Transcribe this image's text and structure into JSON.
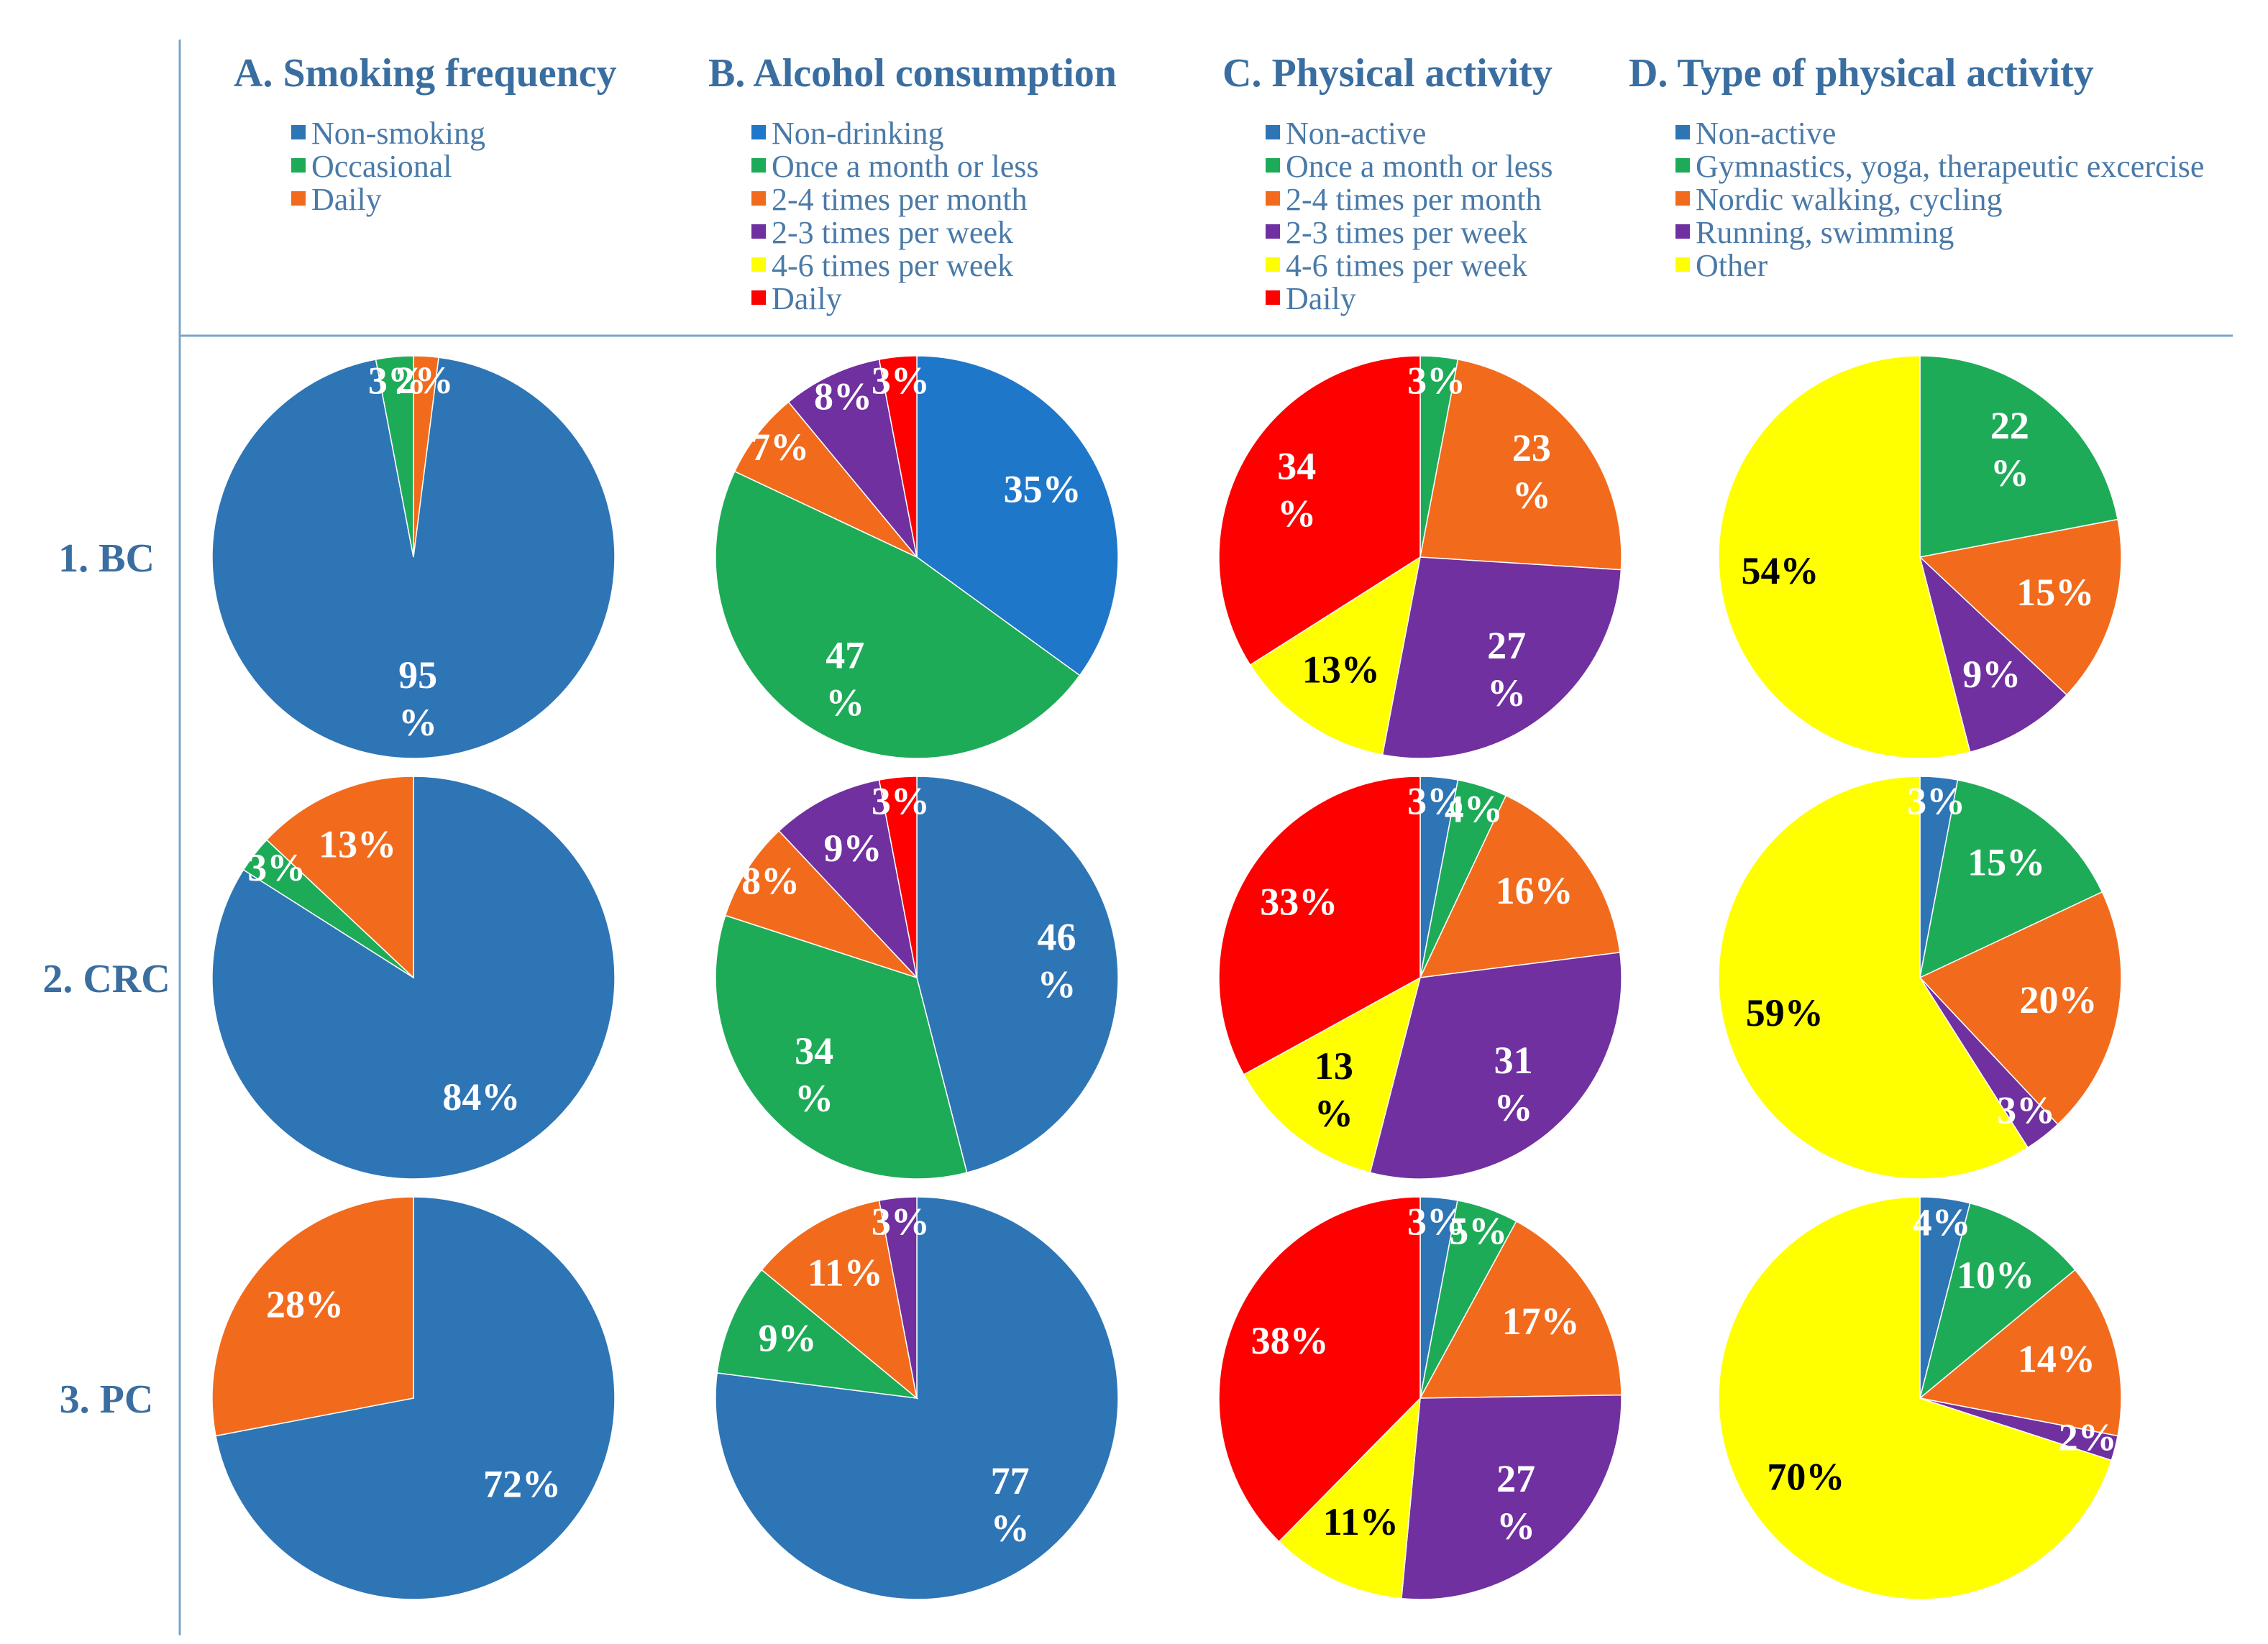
{
  "colors": {
    "blue": "#2e75b6",
    "blue_alc": "#1f77c9",
    "green": "#1eab58",
    "orange": "#f26b1d",
    "purple": "#7030a0",
    "yellow": "#ffff00",
    "red": "#ff0000",
    "title": "#3a6ea0",
    "legend_text": "#4a7aa8",
    "rule": "#7aa6c8",
    "label_white": "#ffffff",
    "label_black": "#000000"
  },
  "row_labels": [
    "1. BC",
    "2. CRC",
    "3. PC"
  ],
  "chart_data": [
    {
      "type": "pie",
      "title": "A. Smoking frequency",
      "legend": [
        {
          "label": "Non-smoking",
          "color": "blue"
        },
        {
          "label": "Occasional",
          "color": "green"
        },
        {
          "label": "Daily",
          "color": "orange"
        }
      ],
      "pies": [
        {
          "row": "1. BC",
          "start_deg": 0,
          "slices": [
            {
              "category": "Daily",
              "value": 2,
              "label": "2%",
              "color": "orange",
              "text": "label_white"
            },
            {
              "category": "Non-smoking",
              "value": 95,
              "label": "95 %",
              "color": "blue",
              "text": "label_white"
            },
            {
              "category": "Occasional",
              "value": 3,
              "label": "3%",
              "color": "green",
              "text": "label_white"
            }
          ]
        },
        {
          "row": "2. CRC",
          "start_deg": 0,
          "slices": [
            {
              "category": "Non-smoking",
              "value": 84,
              "label": "84%",
              "color": "blue",
              "text": "label_white"
            },
            {
              "category": "Occasional",
              "value": 3,
              "label": "3%",
              "color": "green",
              "text": "label_white"
            },
            {
              "category": "Daily",
              "value": 13,
              "label": "13%",
              "color": "orange",
              "text": "label_white"
            }
          ]
        },
        {
          "row": "3. PC",
          "start_deg": 0,
          "slices": [
            {
              "category": "Non-smoking",
              "value": 72,
              "label": "72%",
              "color": "blue",
              "text": "label_white"
            },
            {
              "category": "Daily",
              "value": 28,
              "label": "28%",
              "color": "orange",
              "text": "label_white"
            }
          ]
        }
      ]
    },
    {
      "type": "pie",
      "title": "B. Alcohol consumption",
      "legend": [
        {
          "label": "Non-drinking",
          "color": "blue_alc"
        },
        {
          "label": "Once a month or less",
          "color": "green"
        },
        {
          "label": "2-4 times per month",
          "color": "orange"
        },
        {
          "label": "2-3 times per week",
          "color": "purple"
        },
        {
          "label": "4-6 times per week",
          "color": "yellow"
        },
        {
          "label": "Daily",
          "color": "red"
        }
      ],
      "pies": [
        {
          "row": "1. BC",
          "start_deg": 0,
          "slices": [
            {
              "category": "Non-drinking",
              "value": 35,
              "label": "35%",
              "color": "blue_alc",
              "text": "label_white"
            },
            {
              "category": "Once a month or less",
              "value": 47,
              "label": "47 %",
              "color": "green",
              "text": "label_white"
            },
            {
              "category": "2-4 times per month",
              "value": 7,
              "label": "7%",
              "color": "orange",
              "text": "label_white"
            },
            {
              "category": "2-3 times per week",
              "value": 8,
              "label": "8%",
              "color": "purple",
              "text": "label_white"
            },
            {
              "category": "Daily",
              "value": 3,
              "label": "3%",
              "color": "red",
              "text": "label_white"
            }
          ]
        },
        {
          "row": "2. CRC",
          "start_deg": 0,
          "slices": [
            {
              "category": "Non-drinking",
              "value": 46,
              "label": "46 %",
              "color": "blue",
              "text": "label_white"
            },
            {
              "category": "Once a month or less",
              "value": 34,
              "label": "34 %",
              "color": "green",
              "text": "label_white"
            },
            {
              "category": "2-4 times per month",
              "value": 8,
              "label": "8%",
              "color": "orange",
              "text": "label_white"
            },
            {
              "category": "2-3 times per week",
              "value": 9,
              "label": "9%",
              "color": "purple",
              "text": "label_white"
            },
            {
              "category": "Daily",
              "value": 3,
              "label": "3%",
              "color": "red",
              "text": "label_white"
            }
          ]
        },
        {
          "row": "3. PC",
          "start_deg": 0,
          "slices": [
            {
              "category": "Non-drinking",
              "value": 77,
              "label": "77 %",
              "color": "blue",
              "text": "label_white"
            },
            {
              "category": "Once a month or less",
              "value": 9,
              "label": "9%",
              "color": "green",
              "text": "label_white"
            },
            {
              "category": "2-4 times per month",
              "value": 11,
              "label": "11%",
              "color": "orange",
              "text": "label_white"
            },
            {
              "category": "2-3 times per week",
              "value": 3,
              "label": "3%",
              "color": "purple",
              "text": "label_white"
            }
          ]
        }
      ]
    },
    {
      "type": "pie",
      "title": "C. Physical activity",
      "legend": [
        {
          "label": "Non-active",
          "color": "blue"
        },
        {
          "label": "Once a month or less",
          "color": "green"
        },
        {
          "label": "2-4 times per month",
          "color": "orange"
        },
        {
          "label": "2-3 times per week",
          "color": "purple"
        },
        {
          "label": "4-6 times per week",
          "color": "yellow"
        },
        {
          "label": "Daily",
          "color": "red"
        }
      ],
      "pies": [
        {
          "row": "1. BC",
          "start_deg": 0,
          "slices": [
            {
              "category": "Once a month or less",
              "value": 3,
              "label": "3%",
              "color": "green",
              "text": "label_white"
            },
            {
              "category": "2-4 times per month",
              "value": 23,
              "label": "23 %",
              "color": "orange",
              "text": "label_white"
            },
            {
              "category": "2-3 times per week",
              "value": 27,
              "label": "27 %",
              "color": "purple",
              "text": "label_white"
            },
            {
              "category": "4-6 times per week",
              "value": 13,
              "label": "13%",
              "color": "yellow",
              "text": "label_black"
            },
            {
              "category": "Daily",
              "value": 34,
              "label": "34 %",
              "color": "red",
              "text": "label_white"
            }
          ]
        },
        {
          "row": "2. CRC",
          "start_deg": 0,
          "slices": [
            {
              "category": "Non-active",
              "value": 3,
              "label": "3%",
              "color": "blue",
              "text": "label_white"
            },
            {
              "category": "Once a month or less",
              "value": 4,
              "label": "4%",
              "color": "green",
              "text": "label_white"
            },
            {
              "category": "2-4 times per month",
              "value": 16,
              "label": "16%",
              "color": "orange",
              "text": "label_white"
            },
            {
              "category": "2-3 times per week",
              "value": 31,
              "label": "31 %",
              "color": "purple",
              "text": "label_white"
            },
            {
              "category": "4-6 times per week",
              "value": 13,
              "label": "13 %",
              "color": "yellow",
              "text": "label_black"
            },
            {
              "category": "Daily",
              "value": 33,
              "label": "33%",
              "color": "red",
              "text": "label_white"
            }
          ]
        },
        {
          "row": "3. PC",
          "start_deg": 0,
          "slices": [
            {
              "category": "Non-active",
              "value": 3,
              "label": "3%",
              "color": "blue",
              "text": "label_white"
            },
            {
              "category": "Once a month or less",
              "value": 5,
              "label": "5%",
              "color": "green",
              "text": "label_white"
            },
            {
              "category": "2-4 times per month",
              "value": 17,
              "label": "17%",
              "color": "orange",
              "text": "label_white"
            },
            {
              "category": "2-3 times per week",
              "value": 27,
              "label": "27 %",
              "color": "purple",
              "text": "label_white"
            },
            {
              "category": "4-6 times per week",
              "value": 11,
              "label": "11%",
              "color": "yellow",
              "text": "label_black"
            },
            {
              "category": "Daily",
              "value": 38,
              "label": "38%",
              "color": "red",
              "text": "label_white"
            }
          ]
        }
      ]
    },
    {
      "type": "pie",
      "title": "D. Type of physical activity",
      "legend": [
        {
          "label": "Non-active",
          "color": "blue"
        },
        {
          "label": "Gymnastics, yoga, therapeutic excercise",
          "color": "green"
        },
        {
          "label": "Nordic walking, cycling",
          "color": "orange"
        },
        {
          "label": "Running, swimming",
          "color": "purple"
        },
        {
          "label": "Other",
          "color": "yellow"
        }
      ],
      "pies": [
        {
          "row": "1. BC",
          "start_deg": 0,
          "slices": [
            {
              "category": "Gymnastics, yoga, therapeutic excercise",
              "value": 22,
              "label": "22 %",
              "color": "green",
              "text": "label_white"
            },
            {
              "category": "Nordic walking, cycling",
              "value": 15,
              "label": "15%",
              "color": "orange",
              "text": "label_white"
            },
            {
              "category": "Running, swimming",
              "value": 9,
              "label": "9%",
              "color": "purple",
              "text": "label_white"
            },
            {
              "category": "Other",
              "value": 54,
              "label": "54%",
              "color": "yellow",
              "text": "label_black"
            }
          ]
        },
        {
          "row": "2. CRC",
          "start_deg": 0,
          "slices": [
            {
              "category": "Non-active",
              "value": 3,
              "label": "3%",
              "color": "blue",
              "text": "label_white"
            },
            {
              "category": "Gymnastics, yoga, therapeutic excercise",
              "value": 15,
              "label": "15%",
              "color": "green",
              "text": "label_white"
            },
            {
              "category": "Nordic walking, cycling",
              "value": 20,
              "label": "20%",
              "color": "orange",
              "text": "label_white"
            },
            {
              "category": "Running, swimming",
              "value": 3,
              "label": "3%",
              "color": "purple",
              "text": "label_white"
            },
            {
              "category": "Other",
              "value": 59,
              "label": "59%",
              "color": "yellow",
              "text": "label_black"
            }
          ]
        },
        {
          "row": "3. PC",
          "start_deg": 0,
          "slices": [
            {
              "category": "Non-active",
              "value": 4,
              "label": "4%",
              "color": "blue",
              "text": "label_white"
            },
            {
              "category": "Gymnastics, yoga, therapeutic excercise",
              "value": 10,
              "label": "10%",
              "color": "green",
              "text": "label_white"
            },
            {
              "category": "Nordic walking, cycling",
              "value": 14,
              "label": "14%",
              "color": "orange",
              "text": "label_white"
            },
            {
              "category": "Running, swimming",
              "value": 2,
              "label": "2%",
              "color": "purple",
              "text": "label_white"
            },
            {
              "category": "Other",
              "value": 70,
              "label": "70%",
              "color": "yellow",
              "text": "label_black"
            }
          ]
        }
      ]
    }
  ]
}
